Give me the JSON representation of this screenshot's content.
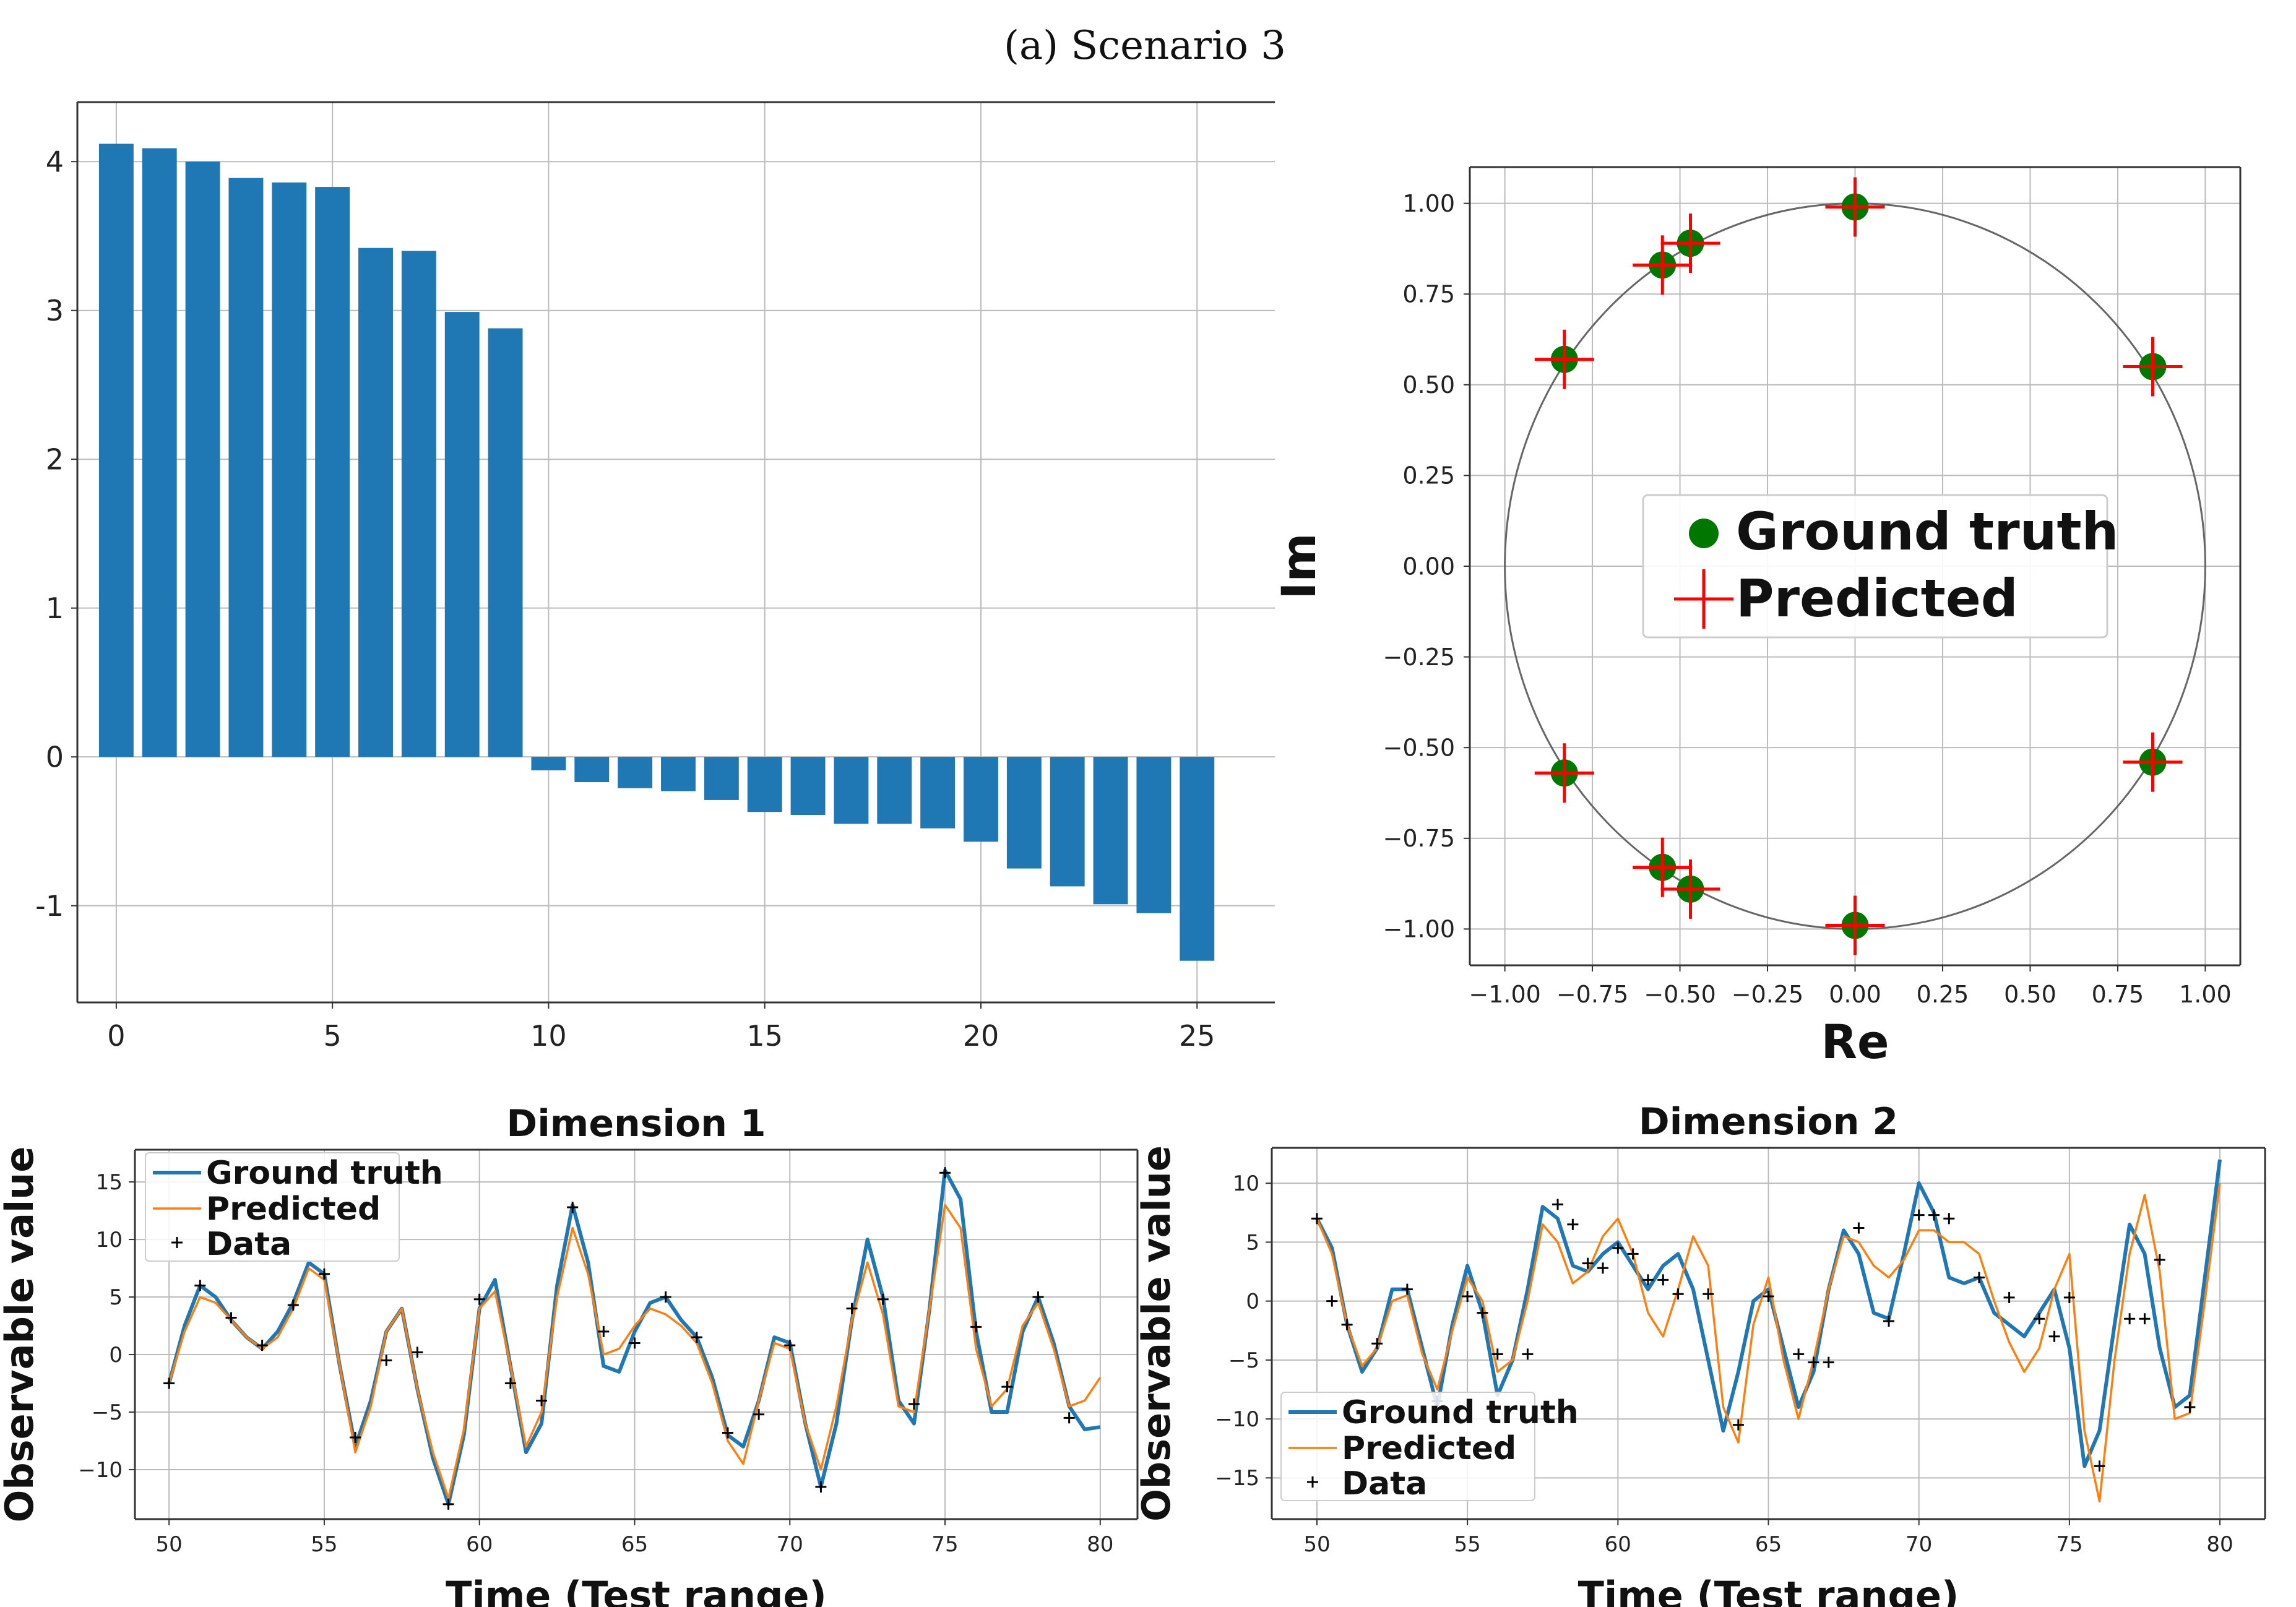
{
  "figure": {
    "caption": "(a) Scenario 3"
  },
  "colors": {
    "bar": "#1f77b4",
    "gt_line": "#1f77b4",
    "pred_line": "#ff7f0e",
    "gt_marker": "#007700",
    "pred_marker": "#ff0000",
    "grid": "#bbbbbb",
    "circle": "#666666"
  },
  "chart_data": [
    {
      "id": "eigen_bar",
      "type": "bar",
      "title": "",
      "xlabel": "",
      "ylabel": "",
      "categories": [
        0,
        1,
        2,
        3,
        4,
        5,
        6,
        7,
        8,
        9,
        10,
        11,
        12,
        13,
        14,
        15,
        16,
        17,
        18,
        19,
        20,
        21,
        22,
        23,
        24,
        25
      ],
      "values": [
        4.12,
        4.09,
        4.0,
        3.89,
        3.86,
        3.83,
        3.42,
        3.4,
        2.99,
        2.88,
        -0.09,
        -0.17,
        -0.21,
        -0.23,
        -0.29,
        -0.37,
        -0.39,
        -0.45,
        -0.45,
        -0.48,
        -0.57,
        -0.75,
        -0.87,
        -0.99,
        -1.05,
        -1.37
      ],
      "xlim": [
        -0.9,
        26.8
      ],
      "ylim": [
        -1.65,
        4.4
      ],
      "xticks": [
        0,
        5,
        10,
        15,
        20,
        25
      ],
      "xtick_labels": [
        "0",
        "5",
        "10",
        "15",
        "20",
        "25"
      ],
      "yticks": [
        -1,
        0,
        1,
        2,
        3,
        4
      ],
      "ytick_labels": [
        "-1",
        "0",
        "1",
        "2",
        "3",
        "4"
      ],
      "grid": true
    },
    {
      "id": "eigen_scatter",
      "type": "scatter",
      "title": "",
      "xlabel": "Re",
      "ylabel": "Im",
      "xlim": [
        -1.1,
        1.1
      ],
      "ylim": [
        -1.1,
        1.1
      ],
      "xticks": [
        -1,
        -0.75,
        -0.5,
        -0.25,
        0,
        0.25,
        0.5,
        0.75,
        1
      ],
      "xtick_labels": [
        "−1.00",
        "−0.75",
        "−0.50",
        "−0.25",
        "0.00",
        "0.25",
        "0.50",
        "0.75",
        "1.00"
      ],
      "yticks": [
        1,
        0.75,
        0.5,
        0.25,
        0,
        -0.25,
        -0.5,
        -0.75,
        -1
      ],
      "ytick_labels": [
        "1.00",
        "0.75",
        "0.50",
        "0.25",
        "0.00",
        "−0.25",
        "−0.50",
        "−0.75",
        "−1.00"
      ],
      "grid": true,
      "unit_circle": true,
      "legend": {
        "position": "center",
        "entries": [
          "Ground truth",
          "Predicted"
        ]
      },
      "series": [
        {
          "name": "Ground truth",
          "marker": "circle",
          "points": [
            [
              0,
              0.99
            ],
            [
              -0.47,
              0.89
            ],
            [
              -0.55,
              0.83
            ],
            [
              -0.83,
              0.57
            ],
            [
              0.85,
              0.55
            ],
            [
              -0.83,
              -0.57
            ],
            [
              0.85,
              -0.54
            ],
            [
              -0.55,
              -0.83
            ],
            [
              -0.47,
              -0.89
            ],
            [
              0,
              -0.99
            ]
          ]
        },
        {
          "name": "Predicted",
          "marker": "plus",
          "points": [
            [
              0,
              0.99
            ],
            [
              -0.47,
              0.89
            ],
            [
              -0.55,
              0.83
            ],
            [
              -0.83,
              0.57
            ],
            [
              0.85,
              0.55
            ],
            [
              -0.83,
              -0.57
            ],
            [
              0.85,
              -0.54
            ],
            [
              -0.55,
              -0.83
            ],
            [
              -0.47,
              -0.89
            ],
            [
              0,
              -0.99
            ]
          ]
        }
      ]
    },
    {
      "id": "dim1",
      "type": "line",
      "title": "Dimension 1",
      "xlabel": "Time (Test range)",
      "ylabel": "Observable value",
      "xlim": [
        48.9,
        81.2
      ],
      "ylim": [
        -14.3,
        17.8
      ],
      "xticks": [
        50,
        55,
        60,
        65,
        70,
        75,
        80
      ],
      "xtick_labels": [
        "50",
        "55",
        "60",
        "65",
        "70",
        "75",
        "80"
      ],
      "yticks": [
        -10,
        -5,
        0,
        5,
        10,
        15
      ],
      "ytick_labels": [
        "−10",
        "−5",
        "0",
        "5",
        "10",
        "15"
      ],
      "grid": true,
      "legend": {
        "position": "top-left",
        "entries": [
          "Ground truth",
          "Predicted",
          "Data"
        ]
      },
      "series": [
        {
          "name": "Ground truth",
          "x": [
            50,
            50.5,
            51,
            51.5,
            52,
            52.5,
            53,
            53.5,
            54,
            54.5,
            55,
            55.5,
            56,
            56.5,
            57,
            57.5,
            58,
            58.5,
            59,
            59.5,
            60,
            60.5,
            61,
            61.5,
            62,
            62.5,
            63,
            63.5,
            64,
            64.5,
            65,
            65.5,
            66,
            66.5,
            67,
            67.5,
            68,
            68.5,
            69,
            69.5,
            70,
            70.5,
            71,
            71.5,
            72,
            72.5,
            73,
            73.5,
            74,
            74.5,
            75,
            75.5,
            76,
            76.5,
            77,
            77.5,
            78,
            78.5,
            79,
            79.5,
            80
          ],
          "y": [
            -2.5,
            2.5,
            6.0,
            5.0,
            3.0,
            1.5,
            0.5,
            2.0,
            4.5,
            8.0,
            7.0,
            -1.0,
            -8.0,
            -4.0,
            2.0,
            4.0,
            -3.0,
            -9.0,
            -13.0,
            -7.0,
            4.0,
            6.5,
            -1.0,
            -8.5,
            -6.0,
            6.0,
            13.0,
            8.0,
            -1.0,
            -1.5,
            2.0,
            4.5,
            5.0,
            3.0,
            1.5,
            -2.0,
            -7.0,
            -8.0,
            -4.0,
            1.5,
            1.0,
            -6.0,
            -11.5,
            -6.0,
            3.0,
            10.0,
            5.0,
            -4.0,
            -6.0,
            4.0,
            16.0,
            13.5,
            2.0,
            -5.0,
            -5.0,
            2.0,
            5.0,
            1.0,
            -4.5,
            -6.5,
            -6.3
          ]
        },
        {
          "name": "Predicted",
          "x": [
            50,
            50.5,
            51,
            51.5,
            52,
            52.5,
            53,
            53.5,
            54,
            54.5,
            55,
            55.5,
            56,
            56.5,
            57,
            57.5,
            58,
            58.5,
            59,
            59.5,
            60,
            60.5,
            61,
            61.5,
            62,
            62.5,
            63,
            63.5,
            64,
            64.5,
            65,
            65.5,
            66,
            66.5,
            67,
            67.5,
            68,
            68.5,
            69,
            69.5,
            70,
            70.5,
            71,
            71.5,
            72,
            72.5,
            73,
            73.5,
            74,
            74.5,
            75,
            75.5,
            76,
            76.5,
            77,
            77.5,
            78,
            78.5,
            79,
            79.5,
            80
          ],
          "y": [
            -2.5,
            2.0,
            5.0,
            4.5,
            3.0,
            1.5,
            0.5,
            1.5,
            4.0,
            7.5,
            6.5,
            -1.0,
            -8.5,
            -4.5,
            2.0,
            4.0,
            -3.0,
            -8.5,
            -12.5,
            -6.5,
            4.0,
            5.5,
            -1.0,
            -8.0,
            -5.0,
            5.0,
            11.0,
            7.0,
            0.0,
            0.5,
            2.5,
            4.0,
            3.5,
            2.5,
            1.0,
            -2.5,
            -7.5,
            -9.5,
            -4.0,
            1.0,
            0.5,
            -6.0,
            -10.0,
            -4.5,
            3.0,
            8.0,
            3.5,
            -4.5,
            -5.0,
            4.0,
            13.0,
            11.0,
            0.5,
            -4.5,
            -3.0,
            2.5,
            4.5,
            0.5,
            -4.5,
            -4.0,
            -2.0
          ]
        },
        {
          "name": "Data",
          "marker": "plus",
          "x": [
            50,
            51,
            52,
            53,
            54,
            55,
            56,
            57,
            58,
            59,
            60,
            61,
            62,
            63,
            64,
            65,
            66,
            67,
            68,
            69,
            70,
            71,
            72,
            73,
            74,
            75,
            76,
            77,
            78,
            79
          ],
          "y": [
            -2.5,
            6.0,
            3.2,
            0.8,
            4.3,
            7.0,
            -7.2,
            -0.5,
            0.2,
            -13.0,
            4.8,
            -2.5,
            -4.0,
            12.8,
            2.0,
            1.0,
            5.0,
            1.5,
            -6.8,
            -5.2,
            0.8,
            -11.5,
            4.0,
            4.8,
            -4.3,
            15.8,
            2.4,
            -2.8,
            5.0,
            -5.5
          ]
        }
      ]
    },
    {
      "id": "dim2",
      "type": "line",
      "title": "Dimension 2",
      "xlabel": "Time (Test range)",
      "ylabel": "Observable value",
      "xlim": [
        48.5,
        81.5
      ],
      "ylim": [
        -18.5,
        13.0
      ],
      "xticks": [
        50,
        55,
        60,
        65,
        70,
        75,
        80
      ],
      "xtick_labels": [
        "50",
        "55",
        "60",
        "65",
        "70",
        "75",
        "80"
      ],
      "yticks": [
        -15,
        -10,
        -5,
        0,
        5,
        10
      ],
      "ytick_labels": [
        "−15",
        "−10",
        "−5",
        "0",
        "5",
        "10"
      ],
      "grid": true,
      "legend": {
        "position": "bottom-left",
        "entries": [
          "Ground truth",
          "Predicted",
          "Data"
        ]
      },
      "series": [
        {
          "name": "Ground truth",
          "x": [
            50,
            50.5,
            51,
            51.5,
            52,
            52.5,
            53,
            53.5,
            54,
            54.5,
            55,
            55.5,
            56,
            56.5,
            57,
            57.5,
            58,
            58.5,
            59,
            59.5,
            60,
            60.5,
            61,
            61.5,
            62,
            62.5,
            63,
            63.5,
            64,
            64.5,
            65,
            65.5,
            66,
            66.5,
            67,
            67.5,
            68,
            68.5,
            69,
            69.5,
            70,
            70.5,
            71,
            71.5,
            72,
            72.5,
            73,
            73.5,
            74,
            74.5,
            75,
            75.5,
            76,
            76.5,
            77,
            77.5,
            78,
            78.5,
            79,
            79.5,
            80
          ],
          "y": [
            7.0,
            4.5,
            -2.0,
            -6.0,
            -4.0,
            1.0,
            1.0,
            -4.0,
            -9.0,
            -2.0,
            3.0,
            -1.0,
            -8.0,
            -5.0,
            1.0,
            8.0,
            7.0,
            3.0,
            2.5,
            4.0,
            5.0,
            3.0,
            1.0,
            3.0,
            4.0,
            1.0,
            -5.0,
            -11.0,
            -6.0,
            0.0,
            1.0,
            -4.0,
            -9.0,
            -6.0,
            1.0,
            6.0,
            4.0,
            -1.0,
            -1.5,
            4.0,
            10.0,
            7.5,
            2.0,
            1.5,
            2.0,
            -1.0,
            -2.0,
            -3.0,
            -1.0,
            1.0,
            -4.0,
            -14.0,
            -11.0,
            -2.0,
            6.5,
            4.0,
            -4.0,
            -9.0,
            -8.0,
            2.0,
            12.0
          ]
        },
        {
          "name": "Predicted",
          "x": [
            50,
            50.5,
            51,
            51.5,
            52,
            52.5,
            53,
            53.5,
            54,
            54.5,
            55,
            55.5,
            56,
            56.5,
            57,
            57.5,
            58,
            58.5,
            59,
            59.5,
            60,
            60.5,
            61,
            61.5,
            62,
            62.5,
            63,
            63.5,
            64,
            64.5,
            65,
            65.5,
            66,
            66.5,
            67,
            67.5,
            68,
            68.5,
            69,
            69.5,
            70,
            70.5,
            71,
            71.5,
            72,
            72.5,
            73,
            73.5,
            74,
            74.5,
            75,
            75.5,
            76,
            76.5,
            77,
            77.5,
            78,
            78.5,
            79,
            79.5,
            80
          ],
          "y": [
            7.0,
            4.0,
            -2.0,
            -5.5,
            -4.0,
            0.0,
            0.5,
            -4.5,
            -7.5,
            -2.5,
            2.0,
            0.0,
            -6.0,
            -5.0,
            0.0,
            6.5,
            5.0,
            1.5,
            2.5,
            5.5,
            7.0,
            4.0,
            -1.0,
            -3.0,
            1.0,
            5.5,
            3.0,
            -9.0,
            -12.0,
            -2.0,
            2.0,
            -5.0,
            -10.0,
            -5.0,
            1.0,
            5.5,
            5.0,
            3.0,
            2.0,
            3.5,
            6.0,
            6.0,
            5.0,
            5.0,
            4.0,
            0.0,
            -3.5,
            -6.0,
            -4.0,
            1.0,
            4.0,
            -11.0,
            -17.0,
            -5.0,
            4.0,
            9.0,
            2.5,
            -10.0,
            -9.5,
            0.0,
            10.0
          ]
        },
        {
          "name": "Data",
          "marker": "plus",
          "x": [
            50,
            50.5,
            51,
            52,
            53,
            54,
            55,
            55.5,
            56,
            57,
            58,
            58.5,
            59,
            59.5,
            60,
            60.5,
            61,
            61.5,
            62,
            63,
            64,
            65,
            66,
            66.5,
            67,
            68,
            69,
            70,
            70.5,
            71,
            72,
            73,
            74,
            74.5,
            75,
            76,
            77,
            77.5,
            78,
            79
          ],
          "y": [
            7.0,
            0.0,
            -2.0,
            -3.6,
            1.0,
            -8.5,
            0.4,
            -1.0,
            -4.5,
            -4.5,
            8.2,
            6.5,
            3.2,
            2.8,
            4.5,
            4.0,
            1.8,
            1.8,
            0.6,
            0.6,
            -10.5,
            0.4,
            -4.5,
            -5.2,
            -5.2,
            6.2,
            -1.7,
            7.3,
            7.3,
            7.0,
            2.0,
            0.3,
            -1.5,
            -3.0,
            0.3,
            -14.0,
            -1.5,
            -1.5,
            3.5,
            -9.0
          ]
        }
      ]
    }
  ]
}
